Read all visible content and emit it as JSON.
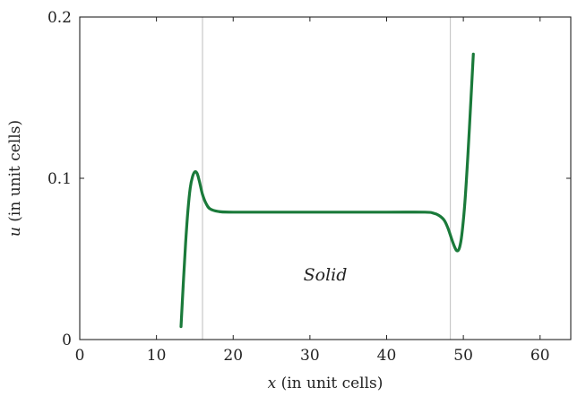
{
  "chart_data": {
    "type": "line",
    "xlabel_var": "x",
    "xlabel_rest": " (in unit cells)",
    "ylabel_var": "u",
    "ylabel_rest": " (in unit cells)",
    "xlim": [
      0,
      64
    ],
    "ylim": [
      0,
      0.2
    ],
    "xticks": [
      0,
      10,
      20,
      30,
      40,
      50,
      60
    ],
    "xtick_labels": [
      "0",
      "10",
      "20",
      "30",
      "40",
      "50",
      "60"
    ],
    "yticks": [
      0,
      0.1,
      0.2
    ],
    "ytick_labels": [
      "0",
      "0.1",
      "0.2"
    ],
    "grid": false,
    "vlines": [
      16,
      48.3
    ],
    "vline_color": "#c8c8c8",
    "annotation": {
      "text": "Solid",
      "x": 32,
      "y": 0.04
    },
    "series": [
      {
        "color": "#1a7a3a",
        "points": [
          [
            13.2,
            0.008
          ],
          [
            13.5,
            0.035
          ],
          [
            13.8,
            0.06
          ],
          [
            14.1,
            0.08
          ],
          [
            14.4,
            0.094
          ],
          [
            14.7,
            0.101
          ],
          [
            15.0,
            0.104
          ],
          [
            15.3,
            0.103
          ],
          [
            15.6,
            0.098
          ],
          [
            16.0,
            0.09
          ],
          [
            16.5,
            0.084
          ],
          [
            17.0,
            0.081
          ],
          [
            18.0,
            0.0795
          ],
          [
            20.0,
            0.079
          ],
          [
            30.0,
            0.079
          ],
          [
            40.0,
            0.079
          ],
          [
            45.0,
            0.079
          ],
          [
            46.0,
            0.0785
          ],
          [
            46.8,
            0.077
          ],
          [
            47.5,
            0.074
          ],
          [
            48.0,
            0.069
          ],
          [
            48.5,
            0.062
          ],
          [
            48.9,
            0.057
          ],
          [
            49.2,
            0.055
          ],
          [
            49.5,
            0.057
          ],
          [
            49.8,
            0.065
          ],
          [
            50.2,
            0.085
          ],
          [
            50.6,
            0.115
          ],
          [
            51.0,
            0.15
          ],
          [
            51.3,
            0.177
          ]
        ]
      }
    ]
  }
}
